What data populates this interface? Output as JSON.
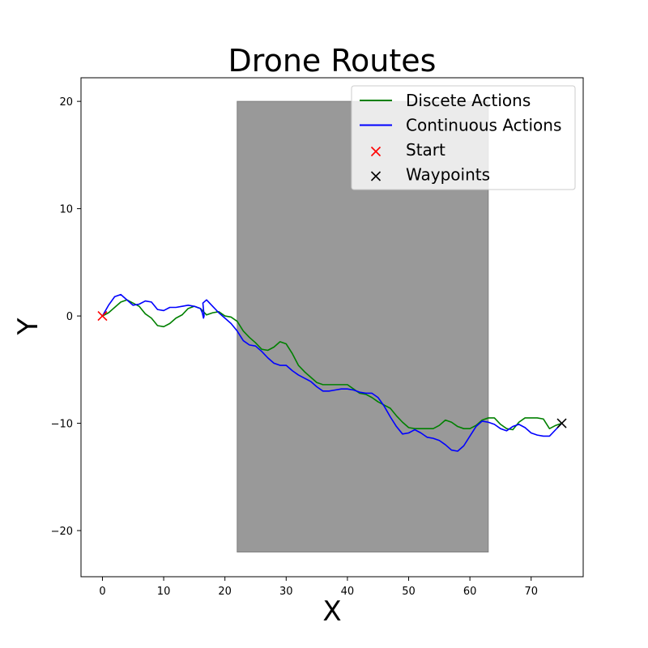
{
  "chart_data": {
    "type": "line",
    "title": "Drone Routes",
    "xlabel": "X",
    "ylabel": "Y",
    "xlim": [
      -3.5,
      78.5
    ],
    "ylim": [
      -24.3,
      22.2
    ],
    "xticks": [
      0,
      10,
      20,
      30,
      40,
      50,
      60,
      70
    ],
    "yticks": [
      -20,
      -10,
      0,
      10,
      20
    ],
    "tick_labels_x": [
      "0",
      "10",
      "20",
      "30",
      "40",
      "50",
      "60",
      "70"
    ],
    "tick_labels_y": [
      "−20",
      "−10",
      "0",
      "10",
      "20"
    ],
    "grid": false,
    "legend_position": "top-right",
    "region": {
      "x": [
        22,
        63
      ],
      "y": [
        -22,
        20
      ],
      "color": "#999999"
    },
    "series": [
      {
        "name": "Discete Actions",
        "color": "#008000",
        "x": [
          0,
          1,
          2,
          3,
          4,
          5,
          6,
          7,
          8,
          9,
          10,
          11,
          12,
          13,
          14,
          15,
          16,
          17,
          18,
          19,
          20,
          21,
          22,
          23,
          24,
          25,
          26,
          27,
          28,
          29,
          30,
          31,
          32,
          33,
          34,
          35,
          36,
          37,
          38,
          39,
          40,
          41,
          42,
          43,
          44,
          45,
          46,
          47,
          48,
          49,
          50,
          51,
          52,
          53,
          54,
          55,
          56,
          57,
          58,
          59,
          60,
          61,
          62,
          63,
          64,
          65,
          66,
          67,
          68,
          69,
          70,
          71,
          72,
          73,
          74,
          75
        ],
        "y": [
          0,
          0.3,
          0.8,
          1.3,
          1.5,
          1.2,
          0.9,
          0.2,
          -0.2,
          -0.9,
          -1.0,
          -0.7,
          -0.2,
          0.1,
          0.7,
          0.9,
          0.7,
          0.1,
          0.3,
          0.4,
          0.0,
          -0.1,
          -0.5,
          -1.4,
          -2.0,
          -2.5,
          -3.1,
          -3.2,
          -2.9,
          -2.4,
          -2.6,
          -3.5,
          -4.6,
          -5.2,
          -5.7,
          -6.2,
          -6.4,
          -6.4,
          -6.4,
          -6.4,
          -6.4,
          -6.8,
          -7.2,
          -7.3,
          -7.6,
          -8.0,
          -8.3,
          -8.6,
          -9.3,
          -9.9,
          -10.4,
          -10.5,
          -10.5,
          -10.5,
          -10.5,
          -10.2,
          -9.7,
          -9.9,
          -10.3,
          -10.5,
          -10.5,
          -10.2,
          -9.7,
          -9.5,
          -9.5,
          -10.1,
          -10.5,
          -10.6,
          -9.9,
          -9.5,
          -9.5,
          -9.5,
          -9.6,
          -10.5,
          -10.2,
          -10.0
        ]
      },
      {
        "name": "Continuous Actions",
        "color": "#0000ff",
        "x": [
          0,
          1,
          2,
          3,
          4,
          5,
          6,
          7,
          8,
          9,
          10,
          11,
          12,
          13,
          14,
          15,
          16,
          16.3,
          16.5,
          16.6,
          16.4,
          17,
          18,
          19,
          20,
          21,
          22,
          23,
          24,
          25,
          26,
          27,
          28,
          29,
          30,
          31,
          32,
          33,
          34,
          35,
          36,
          37,
          38,
          39,
          40,
          41,
          42,
          43,
          44,
          45,
          46,
          47,
          48,
          49,
          50,
          51,
          52,
          53,
          54,
          55,
          56,
          57,
          58,
          59,
          60,
          61,
          62,
          63,
          64,
          65,
          66,
          67,
          68,
          69,
          70,
          71,
          72,
          73,
          74,
          75
        ],
        "y": [
          0,
          1.0,
          1.8,
          2.0,
          1.5,
          1.0,
          1.1,
          1.4,
          1.3,
          0.6,
          0.5,
          0.8,
          0.8,
          0.9,
          1.0,
          0.9,
          0.7,
          0.3,
          -0.2,
          0.0,
          1.2,
          1.5,
          0.9,
          0.3,
          -0.2,
          -0.7,
          -1.4,
          -2.3,
          -2.7,
          -2.8,
          -3.3,
          -3.9,
          -4.4,
          -4.6,
          -4.6,
          -5.1,
          -5.5,
          -5.8,
          -6.1,
          -6.6,
          -7.0,
          -7.0,
          -6.9,
          -6.8,
          -6.8,
          -6.9,
          -7.1,
          -7.2,
          -7.2,
          -7.6,
          -8.4,
          -9.4,
          -10.3,
          -11.0,
          -10.9,
          -10.6,
          -10.9,
          -11.3,
          -11.4,
          -11.6,
          -12.0,
          -12.5,
          -12.6,
          -12.1,
          -11.2,
          -10.3,
          -9.8,
          -9.9,
          -10.1,
          -10.5,
          -10.7,
          -10.3,
          -10.1,
          -10.4,
          -10.9,
          -11.1,
          -11.2,
          -11.2,
          -10.6,
          -10.0
        ]
      }
    ],
    "markers": [
      {
        "name": "Start",
        "symbol": "x",
        "color": "#ff0000",
        "x": 0,
        "y": 0
      },
      {
        "name": "Waypoints",
        "symbol": "x",
        "color": "#000000",
        "x": 75,
        "y": -10
      }
    ],
    "legend": [
      {
        "label": "Discete Actions",
        "kind": "line",
        "color": "#008000"
      },
      {
        "label": "Continuous Actions",
        "kind": "line",
        "color": "#0000ff"
      },
      {
        "label": "Start",
        "kind": "x",
        "color": "#ff0000"
      },
      {
        "label": "Waypoints",
        "kind": "x",
        "color": "#000000"
      }
    ]
  }
}
